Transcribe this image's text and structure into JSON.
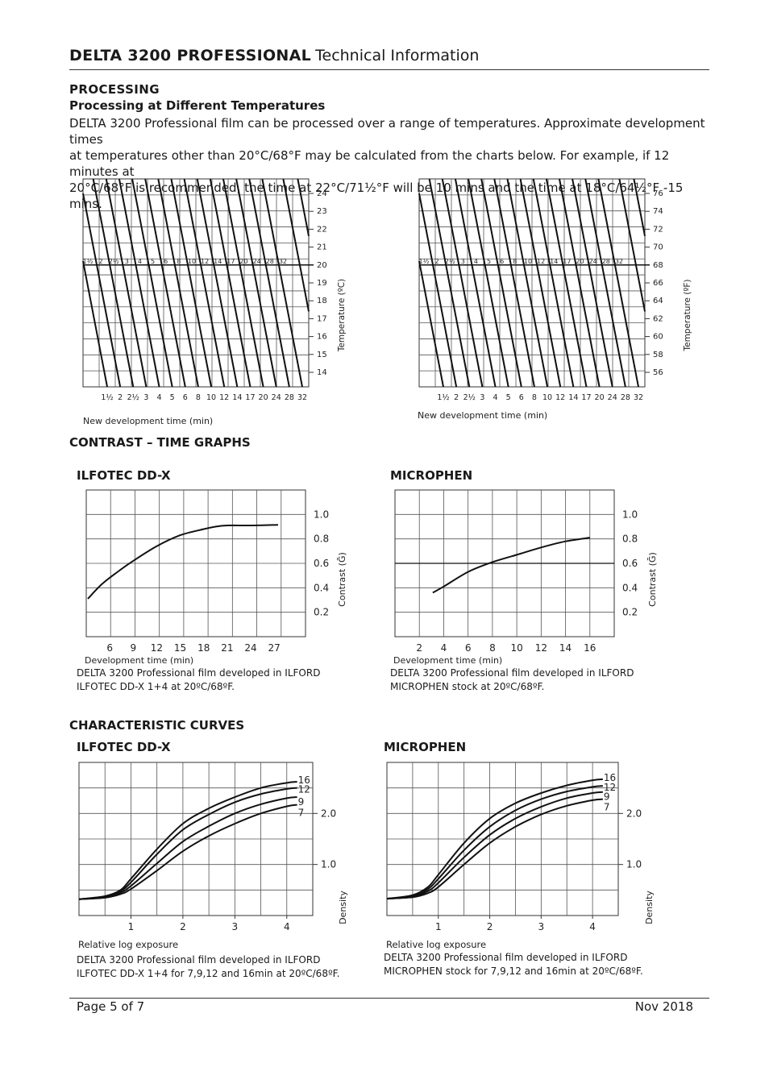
{
  "header": {
    "brand": "DELTA 3200 PROFESSIONAL",
    "subtitle": "Technical Information"
  },
  "processing": {
    "heading": "PROCESSING",
    "subheading": "Processing at Different Temperatures",
    "paragraph_lines": [
      "DELTA 3200 Professional film can be processed over a range of temperatures. Approximate development times",
      "at temperatures other than 20°C/68°F may be calculated from the charts below. For example, if 12 minutes at",
      "20°C/68°F is recommended, the time at 22°C/71½°F will be 10 mins and the time at 18°C/64½°F -15 mins."
    ]
  },
  "contrast_heading": "CONTRAST – TIME GRAPHS",
  "characteristic_heading": "CHARACTERISTIC CURVES",
  "captions": {
    "ct_ddx": [
      "DELTA 3200 Professional film developed in ILFORD",
      "ILFOTEC DD-X 1+4 at 20ºC/68ºF."
    ],
    "ct_mic": [
      "DELTA 3200 Professional film developed in ILFORD",
      "MICROPHEN stock at 20ºC/68ºF."
    ],
    "cc_ddx": [
      "DELTA 3200 Professional film developed in ILFORD",
      "ILFOTEC DD-X 1+4 for 7,9,12 and 16min at 20ºC/68ºF."
    ],
    "cc_mic": [
      "DELTA 3200 Professional film developed in ILFORD",
      "MICROPHEN stock for 7,9,12 and 16min at 20ºC/68ºF."
    ]
  },
  "footer": {
    "page": "Page 5 of 7",
    "date": "Nov 2018"
  },
  "chart_data": [
    {
      "id": "temp_c",
      "type": "line",
      "xlabel": "New development time (min)",
      "ylabel": "Temperature (ºC)",
      "x_ticks": [
        "1½",
        "2",
        "2½",
        "3",
        "4",
        "5",
        "6",
        "8",
        "10",
        "12",
        "14",
        "17",
        "20",
        "24",
        "28",
        "32"
      ],
      "y_ticks": [
        "24",
        "23",
        "22",
        "21",
        "20",
        "19",
        "18",
        "17",
        "16",
        "15",
        "14"
      ],
      "reference_temperature": "20",
      "note": "each diagonal line passes through the same development time label at 20 and at the bottom of the chart"
    },
    {
      "id": "temp_f",
      "type": "line",
      "xlabel": "New development time (min)",
      "ylabel": "Temperature (ºF)",
      "x_ticks": [
        "1½",
        "2",
        "2½",
        "3",
        "4",
        "5",
        "6",
        "8",
        "10",
        "12",
        "14",
        "17",
        "20",
        "24",
        "28",
        "32"
      ],
      "y_ticks": [
        "76",
        "74",
        "72",
        "70",
        "68",
        "66",
        "64",
        "62",
        "60",
        "58",
        "56"
      ],
      "reference_temperature": "68"
    },
    {
      "id": "ct_ddx",
      "title": "ILFOTEC DD-X",
      "type": "line",
      "xlabel": "Development time (min)",
      "ylabel": "Contrast (Ḡ)",
      "x_ticks": [
        "6",
        "9",
        "12",
        "15",
        "18",
        "21",
        "24",
        "27"
      ],
      "y_ticks": [
        "1.0",
        "0.8",
        "0.6",
        "0.4",
        "0.2"
      ],
      "xlim": [
        3,
        31
      ],
      "ylim": [
        0,
        1.2
      ],
      "series": [
        {
          "x": [
            3.2,
            5,
            7,
            9,
            12,
            15,
            18,
            19.5,
            21,
            24,
            27.5
          ],
          "y": [
            0.31,
            0.43,
            0.53,
            0.62,
            0.74,
            0.83,
            0.88,
            0.9,
            0.91,
            0.91,
            0.915
          ]
        }
      ]
    },
    {
      "id": "ct_mic",
      "title": "MICROPHEN",
      "type": "line",
      "xlabel": "Development time (min)",
      "ylabel": "Contrast (Ḡ)",
      "x_ticks": [
        "2",
        "4",
        "6",
        "8",
        "10",
        "12",
        "14",
        "16"
      ],
      "y_ticks": [
        "1.0",
        "0.8",
        "0.6",
        "0.4",
        "0.2"
      ],
      "xlim": [
        0,
        18
      ],
      "ylim": [
        0,
        1.2
      ],
      "series": [
        {
          "x": [
            3.1,
            4,
            6,
            8,
            10,
            12,
            14,
            16
          ],
          "y": [
            0.36,
            0.41,
            0.53,
            0.61,
            0.67,
            0.73,
            0.78,
            0.81
          ]
        }
      ]
    },
    {
      "id": "cc_ddx",
      "title": "ILFOTEC DD-X",
      "type": "line",
      "xlabel": "Relative log exposure",
      "ylabel": "Density",
      "x_ticks": [
        "1",
        "2",
        "3",
        "4"
      ],
      "y_ticks": [
        "2.0",
        "1.0"
      ],
      "xlim": [
        0,
        4.5
      ],
      "ylim": [
        0,
        3.0
      ],
      "series": [
        {
          "name": "16",
          "x": [
            0,
            0.5,
            0.8,
            1.0,
            1.5,
            2.0,
            2.5,
            3.0,
            3.5,
            4.0,
            4.2
          ],
          "y": [
            0.32,
            0.38,
            0.5,
            0.72,
            1.3,
            1.8,
            2.1,
            2.32,
            2.5,
            2.6,
            2.62
          ]
        },
        {
          "name": "12",
          "x": [
            0,
            0.5,
            0.8,
            1.0,
            1.5,
            2.0,
            2.5,
            3.0,
            3.5,
            4.0,
            4.2
          ],
          "y": [
            0.32,
            0.37,
            0.48,
            0.65,
            1.2,
            1.68,
            1.98,
            2.22,
            2.38,
            2.48,
            2.5
          ]
        },
        {
          "name": "9",
          "x": [
            0,
            0.5,
            0.8,
            1.0,
            1.5,
            2.0,
            2.5,
            3.0,
            3.5,
            4.0,
            4.2
          ],
          "y": [
            0.32,
            0.36,
            0.45,
            0.58,
            1.02,
            1.45,
            1.75,
            2.0,
            2.18,
            2.3,
            2.32
          ]
        },
        {
          "name": "7",
          "x": [
            0,
            0.5,
            0.8,
            1.0,
            1.5,
            2.0,
            2.5,
            3.0,
            3.5,
            4.0,
            4.2
          ],
          "y": [
            0.32,
            0.35,
            0.42,
            0.52,
            0.88,
            1.26,
            1.56,
            1.8,
            2.0,
            2.14,
            2.17
          ]
        }
      ]
    },
    {
      "id": "cc_mic",
      "title": "MICROPHEN",
      "type": "line",
      "xlabel": "Relative log exposure",
      "ylabel": "Density",
      "x_ticks": [
        "1",
        "2",
        "3",
        "4"
      ],
      "y_ticks": [
        "2.0",
        "1.0"
      ],
      "xlim": [
        0,
        4.5
      ],
      "ylim": [
        0,
        3.0
      ],
      "series": [
        {
          "name": "16",
          "x": [
            0,
            0.5,
            0.8,
            1.0,
            1.5,
            2.0,
            2.5,
            3.0,
            3.5,
            4.0,
            4.2
          ],
          "y": [
            0.33,
            0.4,
            0.56,
            0.8,
            1.42,
            1.9,
            2.2,
            2.4,
            2.55,
            2.65,
            2.67
          ]
        },
        {
          "name": "12",
          "x": [
            0,
            0.5,
            0.8,
            1.0,
            1.5,
            2.0,
            2.5,
            3.0,
            3.5,
            4.0,
            4.2
          ],
          "y": [
            0.33,
            0.38,
            0.52,
            0.72,
            1.28,
            1.74,
            2.06,
            2.28,
            2.43,
            2.52,
            2.54
          ]
        },
        {
          "name": "9",
          "x": [
            0,
            0.5,
            0.8,
            1.0,
            1.5,
            2.0,
            2.5,
            3.0,
            3.5,
            4.0,
            4.2
          ],
          "y": [
            0.33,
            0.37,
            0.48,
            0.64,
            1.14,
            1.58,
            1.9,
            2.13,
            2.3,
            2.4,
            2.42
          ]
        },
        {
          "name": "7",
          "x": [
            0,
            0.5,
            0.8,
            1.0,
            1.5,
            2.0,
            2.5,
            3.0,
            3.5,
            4.0,
            4.2
          ],
          "y": [
            0.33,
            0.36,
            0.44,
            0.56,
            1.0,
            1.42,
            1.74,
            1.98,
            2.15,
            2.26,
            2.28
          ]
        }
      ]
    }
  ]
}
